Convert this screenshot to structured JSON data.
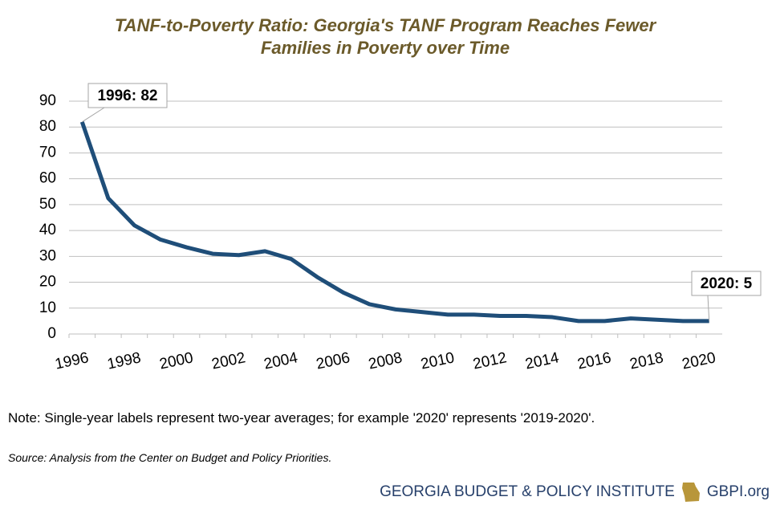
{
  "chart_data": {
    "type": "line",
    "title": "TANF-to-Poverty Ratio: Georgia's TANF Program Reaches Fewer Families in Poverty over Time",
    "categories": [
      "1996",
      null,
      "1998",
      null,
      "2000",
      null,
      "2002",
      null,
      "2004",
      null,
      "2006",
      null,
      "2008",
      null,
      "2010",
      null,
      "2012",
      null,
      "2014",
      null,
      "2016",
      null,
      "2018",
      null,
      "2020"
    ],
    "series": [
      {
        "name": "TANF-to-Poverty Ratio",
        "color": "#1f4e79",
        "values": [
          82,
          52.5,
          42,
          36.5,
          33.5,
          31,
          30.5,
          32,
          29,
          22,
          16,
          11.5,
          9.5,
          8.5,
          7.5,
          7.5,
          7,
          7,
          6.5,
          5,
          5,
          6,
          5.5,
          5,
          5
        ]
      }
    ],
    "ylim": [
      0,
      90
    ],
    "yticks": [
      0,
      10,
      20,
      30,
      40,
      50,
      60,
      70,
      80,
      90
    ],
    "grid": true,
    "annotations": [
      {
        "text": "1996: 82"
      },
      {
        "text": "2020: 5"
      }
    ],
    "note": "Note: Single-year labels represent two-year averages; for example '2020' represents '2019-2020'.",
    "source": "Source: Analysis from the Center on Budget and Policy Priorities."
  },
  "footer": {
    "org": "GEORGIA BUDGET & POLICY INSTITUTE",
    "site": "GBPI.org"
  }
}
